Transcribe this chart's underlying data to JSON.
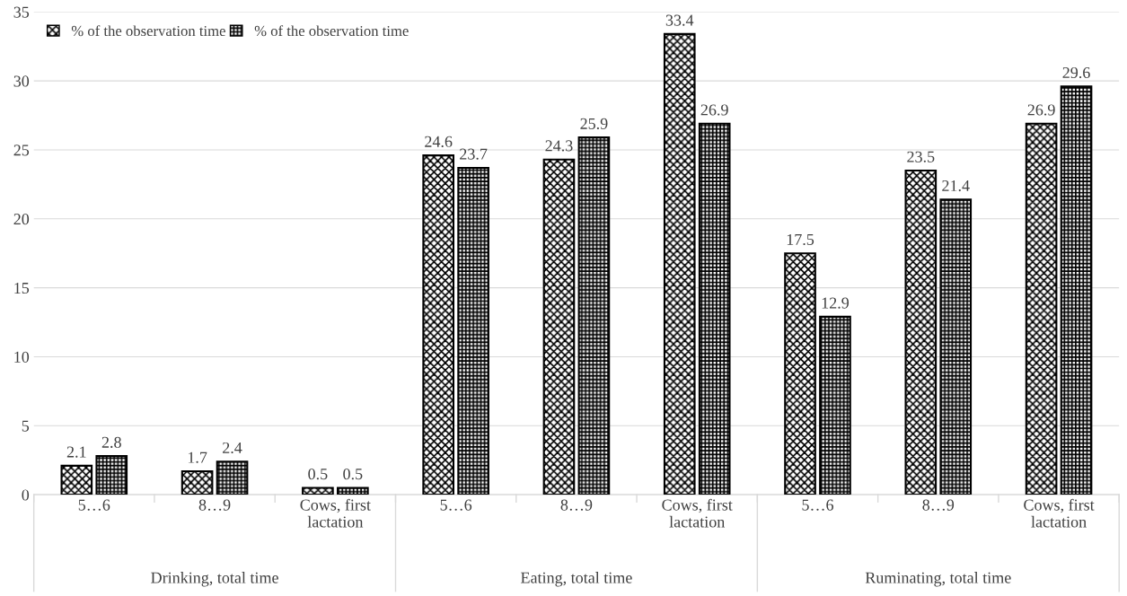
{
  "chart_data": {
    "type": "bar",
    "categories": [
      "5…6",
      "8…9",
      "Cows, first lactation",
      "5…6",
      "8…9",
      "Cows, first lactation",
      "5…6",
      "8…9",
      "Cows, first lactation"
    ],
    "series": [
      {
        "name": "% of the observation time",
        "color": "#000000",
        "values": [
          2.1,
          1.7,
          0.5,
          24.6,
          24.3,
          33.4,
          17.5,
          23.5,
          26.9
        ]
      },
      {
        "name": "% of the observation time",
        "color": "#000000",
        "values": [
          2.8,
          2.4,
          0.5,
          23.7,
          25.9,
          26.9,
          12.9,
          21.4,
          29.6
        ]
      }
    ],
    "annotations": [
      "Drinking, total time",
      "Eating, total time",
      "Ruminating, total time"
    ],
    "ylim": [
      0,
      35
    ],
    "yticks": [
      0,
      5,
      10,
      15,
      20,
      25,
      30,
      35
    ],
    "data_labels": true,
    "grid": "y",
    "legend": "top left"
  }
}
